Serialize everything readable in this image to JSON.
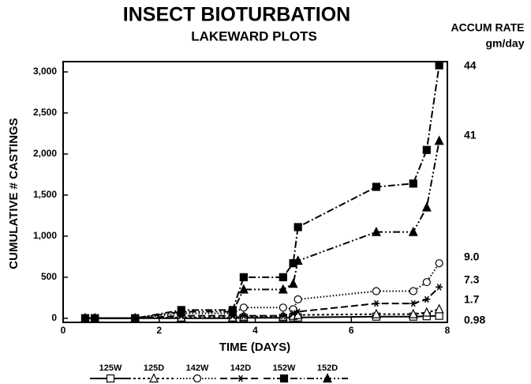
{
  "chart_data": {
    "type": "line",
    "title": "INSECT BIOTURBATION",
    "subtitle": "LAKEWARD PLOTS",
    "rate_header": [
      "ACCUM RATE",
      "gm/day"
    ],
    "x_label": "TIME (DAYS)",
    "y_label": "CUMULATIVE # CASTINGS",
    "x": [
      0.46,
      0.66,
      1.5,
      2.46,
      3.53,
      3.76,
      4.58,
      4.79,
      4.89,
      6.52,
      7.29,
      7.57,
      7.83
    ],
    "xlim": [
      0,
      8
    ],
    "xticks": [
      0,
      2,
      4,
      6,
      8
    ],
    "ylim": [
      -50,
      3125
    ],
    "yticks": [
      0,
      500,
      {
        "value": 1000,
        "label": "1,000"
      },
      {
        "value": 1500,
        "label": "1,500"
      },
      {
        "value": 2000,
        "label": "2,000"
      },
      {
        "value": 2500,
        "label": "2,500"
      },
      {
        "value": 3000,
        "label": "3,000"
      }
    ],
    "series": [
      {
        "name": "125W",
        "color": "#000000",
        "marker": "square-open",
        "dash": "none",
        "rate": "0.98",
        "values": [
          0,
          0,
          0,
          0,
          0,
          5,
          5,
          10,
          10,
          20,
          20,
          25,
          30
        ]
      },
      {
        "name": "125D",
        "color": "#000000",
        "marker": "triangle-open",
        "dash": "3,3",
        "rate": "1.7",
        "values": [
          0,
          0,
          0,
          10,
          10,
          20,
          20,
          30,
          40,
          50,
          50,
          70,
          110
        ]
      },
      {
        "name": "142W",
        "color": "#000000",
        "marker": "circle-open",
        "dash": "1.5,2.5",
        "rate": "9.0",
        "values": [
          0,
          0,
          0,
          60,
          60,
          130,
          130,
          110,
          230,
          330,
          330,
          440,
          670
        ]
      },
      {
        "name": "142D",
        "color": "#000000",
        "marker": "star",
        "dash": "9,4",
        "rate": "7.3",
        "values": [
          0,
          0,
          0,
          30,
          30,
          30,
          30,
          60,
          80,
          180,
          180,
          230,
          380
        ]
      },
      {
        "name": "152W",
        "color": "#000000",
        "marker": "square",
        "dash": "9,3,2,3",
        "rate": "44",
        "values": [
          0,
          0,
          0,
          100,
          100,
          500,
          500,
          670,
          1110,
          1600,
          1640,
          2050,
          3080
        ]
      },
      {
        "name": "152D",
        "color": "#000000",
        "marker": "triangle",
        "dash": "9,3,2,3,2,3",
        "rate": "41",
        "values": [
          0,
          0,
          0,
          80,
          80,
          350,
          350,
          420,
          700,
          1050,
          1050,
          1350,
          2160
        ]
      }
    ]
  }
}
